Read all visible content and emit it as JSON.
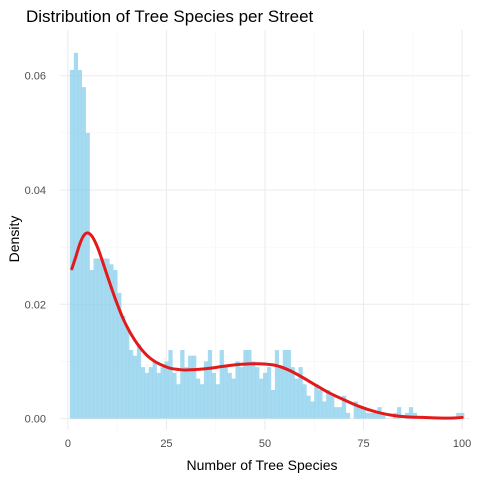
{
  "chart_data": {
    "type": "bar",
    "title": "Distribution of Tree Species per Street",
    "xlabel": "Number of Tree Species",
    "ylabel": "Density",
    "xlim": [
      -2,
      102
    ],
    "ylim": [
      -0.002,
      0.068
    ],
    "x_ticks": [
      0,
      25,
      50,
      75,
      100
    ],
    "x_tick_labels": [
      "0",
      "25",
      "50",
      "75",
      "100"
    ],
    "y_ticks": [
      0.0,
      0.02,
      0.04,
      0.06
    ],
    "y_tick_labels": [
      "0.00",
      "0.02",
      "0.04",
      "0.06"
    ],
    "grid": true,
    "bin_width": 1,
    "histogram": {
      "name": "",
      "color": "#87ceeb",
      "bin_starts": [
        1,
        2,
        3,
        4,
        5,
        6,
        7,
        8,
        9,
        10,
        11,
        12,
        13,
        14,
        15,
        16,
        17,
        18,
        19,
        20,
        21,
        22,
        23,
        24,
        25,
        26,
        27,
        28,
        29,
        30,
        31,
        32,
        33,
        34,
        35,
        36,
        37,
        38,
        39,
        40,
        41,
        42,
        43,
        44,
        45,
        46,
        47,
        48,
        49,
        50,
        51,
        52,
        53,
        54,
        55,
        56,
        57,
        58,
        59,
        60,
        61,
        62,
        63,
        64,
        65,
        66,
        67,
        68,
        69,
        70,
        71,
        72,
        73,
        74,
        75,
        76,
        77,
        78,
        79,
        80,
        81,
        82,
        83,
        84,
        85,
        86,
        87,
        88,
        89,
        90,
        91,
        92,
        93,
        94,
        95,
        96,
        97,
        98,
        99,
        100
      ],
      "values": [
        0.061,
        0.064,
        0.061,
        0.058,
        0.05,
        0.026,
        0.028,
        0.028,
        0.028,
        0.028,
        0.027,
        0.026,
        0.022,
        0.018,
        0.016,
        0.012,
        0.011,
        0.013,
        0.009,
        0.008,
        0.009,
        0.01,
        0.008,
        0.009,
        0.01,
        0.012,
        0.008,
        0.006,
        0.012,
        0.009,
        0.011,
        0.011,
        0.007,
        0.006,
        0.01,
        0.012,
        0.008,
        0.006,
        0.012,
        0.009,
        0.008,
        0.007,
        0.01,
        0.009,
        0.012,
        0.012,
        0.01,
        0.009,
        0.007,
        0.008,
        0.009,
        0.005,
        0.012,
        0.009,
        0.012,
        0.012,
        0.009,
        0.007,
        0.009,
        0.006,
        0.004,
        0.003,
        0.006,
        0.005,
        0.003,
        0.005,
        0.004,
        0.002,
        0.002,
        0.004,
        0.001,
        0.0,
        0.003,
        0.002,
        0.002,
        0.001,
        0.001,
        0.001,
        0.002,
        0.001,
        0.0,
        0.0,
        0.001,
        0.002,
        0.0,
        0.001,
        0.002,
        0.001,
        0.0,
        0.0,
        0.0,
        0.0,
        0.0,
        0.0,
        0.0,
        0.0,
        0.0,
        0.0,
        0.001,
        0.001
      ]
    },
    "density_curve": {
      "name": "",
      "color": "#e31a1c",
      "x": [
        1,
        2,
        3,
        4,
        5,
        6,
        7,
        8,
        10,
        12,
        14,
        16,
        18,
        20,
        22,
        24,
        26,
        28,
        30,
        33,
        36,
        40,
        44,
        48,
        52,
        55,
        58,
        62,
        66,
        70,
        74,
        78,
        82,
        86,
        90,
        94,
        98,
        100
      ],
      "y": [
        0.0262,
        0.0283,
        0.0305,
        0.032,
        0.0325,
        0.032,
        0.0308,
        0.0291,
        0.025,
        0.021,
        0.0175,
        0.0148,
        0.0127,
        0.0111,
        0.01,
        0.0093,
        0.0088,
        0.0086,
        0.0085,
        0.0086,
        0.0088,
        0.0092,
        0.0095,
        0.0096,
        0.0094,
        0.0088,
        0.0078,
        0.0062,
        0.0046,
        0.0033,
        0.0021,
        0.0012,
        0.0006,
        0.0003,
        0.0002,
        0.0001,
        0.0001,
        0.0002
      ]
    }
  }
}
